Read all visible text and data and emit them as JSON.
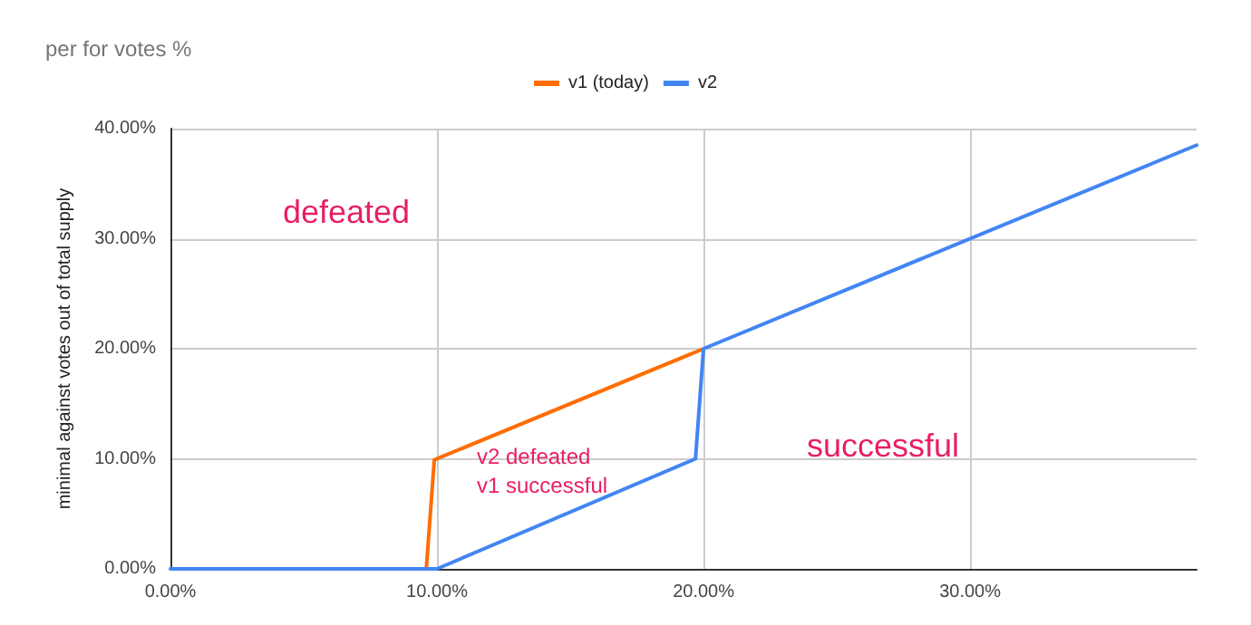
{
  "chart_data": {
    "type": "line",
    "title": "per for votes %",
    "ylabel": "minimal against votes out of total supply",
    "series": [
      {
        "name": "v1 (today)",
        "color": "#ff6d01",
        "x": [
          9.6,
          9.9,
          20
        ],
        "values": [
          0,
          9.9,
          20
        ]
      },
      {
        "name": "v2",
        "color": "#4285f4",
        "x": [
          0,
          10,
          19.7,
          20,
          38.5
        ],
        "values": [
          0,
          0,
          10,
          20,
          38.5
        ]
      }
    ],
    "xlim": [
      0,
      38.5
    ],
    "ylim": [
      0,
      40
    ],
    "xticks": [
      {
        "value": 0,
        "label": "0.00%"
      },
      {
        "value": 10,
        "label": "10.00%"
      },
      {
        "value": 20,
        "label": "20.00%"
      },
      {
        "value": 30,
        "label": "30.00%"
      }
    ],
    "yticks": [
      {
        "value": 0,
        "label": "0.00%"
      },
      {
        "value": 10,
        "label": "10.00%"
      },
      {
        "value": 20,
        "label": "20.00%"
      },
      {
        "value": 30,
        "label": "30.00%"
      },
      {
        "value": 40,
        "label": "40.00%"
      }
    ],
    "annotations": [
      "defeated",
      "successful",
      "v2 defeated\nv1 successful"
    ],
    "grid": true,
    "legend": "top",
    "marker": "none",
    "line_style": "solid"
  }
}
